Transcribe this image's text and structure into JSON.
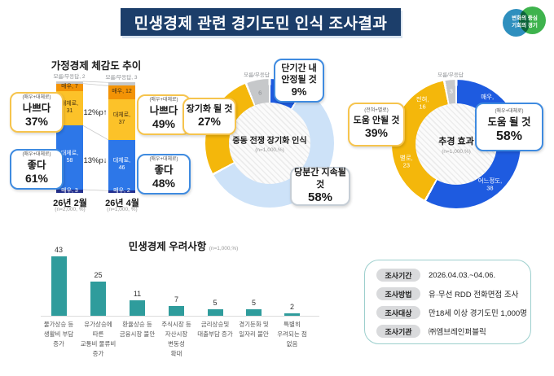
{
  "header": {
    "title": "민생경제 관련 경기도민 인식 조사결과"
  },
  "logo": {
    "line1": "변화의 중심",
    "line2": "기회의 경기"
  },
  "chart_data": [
    {
      "type": "stacked-bar",
      "title": "가정경제 체감도 추이",
      "categories": [
        "26년 2월",
        "26년 4월"
      ],
      "category_notes": [
        "(n=2,000, %)",
        "(n=1,000, %)"
      ],
      "unknown_labels": [
        "모름/무응답, 2",
        "모름/무응답, 3"
      ],
      "series": [
        {
          "name": "모름/무응답",
          "values": [
            2,
            3
          ],
          "color": "#c6c8ca",
          "label_color": "",
          "labels": [
            null,
            null
          ]
        },
        {
          "name": "매우 나쁘다",
          "values": [
            7,
            12
          ],
          "color": "#f39306",
          "label_color": "#463213",
          "labels": [
            [
              "매우, 7"
            ],
            [
              "매우, 12"
            ]
          ]
        },
        {
          "name": "대체로 나쁘다",
          "values": [
            31,
            37
          ],
          "color": "#fcc229",
          "label_color": "#463213",
          "labels": [
            [
              "대체로,",
              "31"
            ],
            [
              "대체로,",
              "37"
            ]
          ]
        },
        {
          "name": "대체로 좋다",
          "values": [
            58,
            46
          ],
          "color": "#2d77e8",
          "label_color": "#ffffff",
          "labels": [
            [
              "대체로,",
              "58"
            ],
            [
              "대체로,",
              "46"
            ]
          ]
        },
        {
          "name": "매우 좋다",
          "values": [
            3,
            2
          ],
          "color": "#23308f",
          "label_color": "#ffffff",
          "labels": [
            [
              "매우, 3"
            ],
            [
              "매우, 2"
            ]
          ]
        }
      ],
      "arrows": [
        "12%p↑",
        "13%p↓"
      ],
      "callouts": {
        "bad1": {
          "sub": "(매우+대체로)",
          "label": "나쁘다",
          "value": "37%"
        },
        "good1": {
          "sub": "(매우+대체로)",
          "label": "좋다",
          "value": "61%"
        },
        "bad2": {
          "sub": "(매우+대체로)",
          "label": "나쁘다",
          "value": "49%"
        },
        "good2": {
          "sub": "(매우+대체로)",
          "label": "좋다",
          "value": "48%"
        }
      }
    },
    {
      "type": "donut",
      "title": "중동 전쟁 장기화 인식",
      "subtitle": "(n=1,000,%)",
      "outside_label": "모름/무응답",
      "slices": [
        {
          "label": "단기간 내 안정될 것",
          "value": 9,
          "color": "#1e5be0"
        },
        {
          "label": "당분간 지속될 것",
          "value": 58,
          "color": "#cde2f8"
        },
        {
          "label": "장기화 될 것",
          "value": 27,
          "color": "#f4b70b"
        },
        {
          "label": "모름/무응답",
          "value": 6,
          "color": "#c6c8ca",
          "inside_label": [
            "6"
          ],
          "label_color": "#8a8d91"
        }
      ],
      "callouts": {
        "short": {
          "line1": "단기간 내",
          "line2": "안정될 것",
          "value": "9%"
        },
        "long": {
          "line1": "장기화 될 것",
          "value": "27%"
        },
        "cont": {
          "line1": "당분간 지속될 것",
          "value": "58%"
        }
      }
    },
    {
      "type": "donut",
      "title": "추경 효과",
      "subtitle": "(n=1,000,%)",
      "outside_label": "모름/무응답",
      "slices": [
        {
          "label": "매우",
          "value": 20,
          "color": "#1e5be0",
          "inside_label": [
            "매우,",
            "20"
          ],
          "label_color": "#ffffff"
        },
        {
          "label": "어느정도",
          "value": 38,
          "color": "#1e5be0",
          "inside_label": [
            "어느정도,",
            "38"
          ],
          "label_color": "#ffffff"
        },
        {
          "label": "별로",
          "value": 23,
          "color": "#f4b70b",
          "inside_label": [
            "별로,",
            "23"
          ],
          "label_color": "#ffffff"
        },
        {
          "label": "전혀",
          "value": 16,
          "color": "#f4b70b",
          "inside_label": [
            "전혀,",
            "16"
          ],
          "label_color": "#ffffff"
        },
        {
          "label": "모름/무응답",
          "value": 3,
          "color": "#c6c8ca",
          "inside_label": [
            "3"
          ],
          "label_color": "#ffffff"
        }
      ],
      "callouts": {
        "help": {
          "sub": "(매우+대체로)",
          "label": "도움 될 것",
          "value": "58%"
        },
        "nohelp": {
          "sub": "(전혀+별로)",
          "label": "도움 안될 것",
          "value": "39%"
        }
      }
    },
    {
      "type": "bar",
      "title": "민생경제 우려사항",
      "subtitle": "(n=1,000,%)",
      "color": "#2f9c9c",
      "categories": [
        [
          "물가상승 등",
          "생활비 부담",
          "증가"
        ],
        [
          "유가상승에",
          "따른",
          "교통비 물류비",
          "증가"
        ],
        [
          "환율상승 등",
          "금융시장 불안"
        ],
        [
          "주식시장 등",
          "자산시장",
          "변동성",
          "확대"
        ],
        [
          "금리상승및",
          "대출부담 증가"
        ],
        [
          "경기둔화 및",
          "일자리 불안"
        ],
        [
          "특별히",
          "우려되는 점",
          "없음"
        ]
      ],
      "values": [
        43,
        25,
        11,
        7,
        5,
        5,
        2
      ]
    }
  ],
  "survey_info": {
    "rows": [
      {
        "label": "조사기간",
        "value": "2026.04.03.~04.06."
      },
      {
        "label": "조사방법",
        "value": "유·무선 RDD 전화면접 조사"
      },
      {
        "label": "조사대상",
        "value": "만18세 이상 경기도민 1,000명"
      },
      {
        "label": "조사기관",
        "value": "㈜엠브레인퍼블릭"
      }
    ]
  }
}
